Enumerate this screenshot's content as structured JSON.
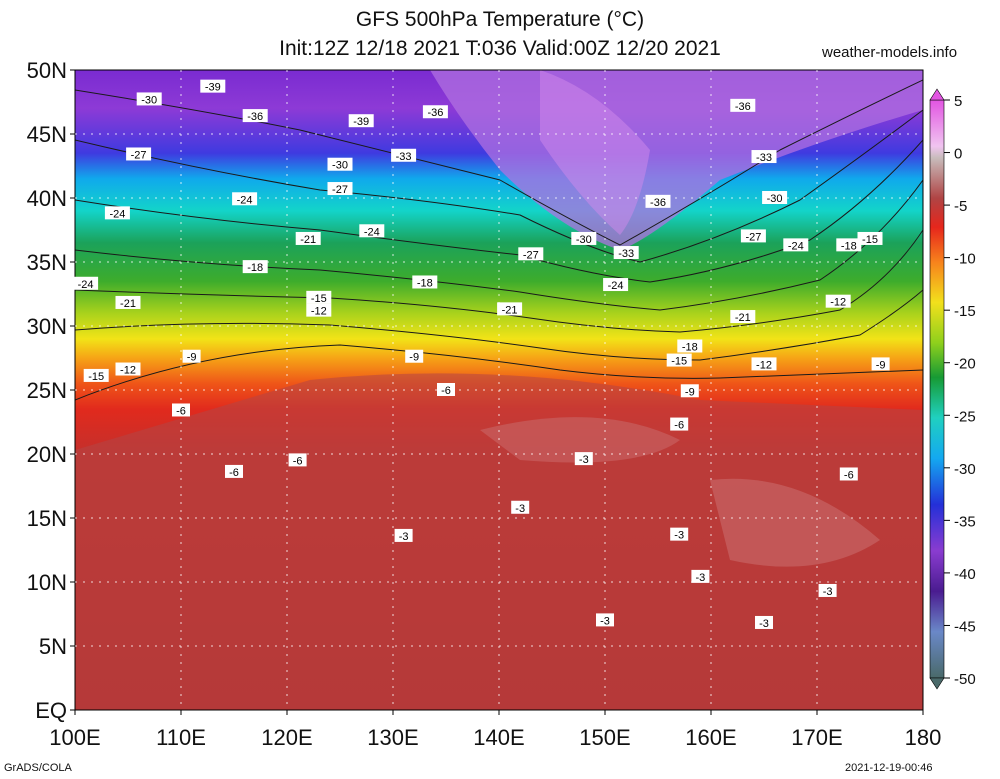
{
  "header": {
    "title": "GFS 500hPa Temperature (°C)",
    "subtitle": "Init:12Z 12/18 2021 T:036 Valid:00Z 12/20 2021",
    "site": "weather-models.info"
  },
  "footer": {
    "left": "GrADS/COLA",
    "right": "2021-12-19-00:46"
  },
  "map": {
    "lat_labels": [
      "50N",
      "45N",
      "40N",
      "35N",
      "30N",
      "25N",
      "20N",
      "15N",
      "10N",
      "5N",
      "EQ"
    ],
    "lon_labels": [
      "100E",
      "110E",
      "120E",
      "130E",
      "140E",
      "150E",
      "160E",
      "170E",
      "180"
    ],
    "lat_range": [
      0,
      50
    ],
    "lon_range": [
      100,
      180
    ],
    "contour_labels": [
      {
        "text": "-39",
        "lon": 113,
        "lat": 48.7
      },
      {
        "text": "-30",
        "lon": 107,
        "lat": 47.7
      },
      {
        "text": "-36",
        "lon": 117,
        "lat": 46.4
      },
      {
        "text": "-39",
        "lon": 127,
        "lat": 46.0
      },
      {
        "text": "-36",
        "lon": 134,
        "lat": 46.7
      },
      {
        "text": "-36",
        "lon": 163,
        "lat": 47.2
      },
      {
        "text": "-27",
        "lon": 106,
        "lat": 43.4
      },
      {
        "text": "-33",
        "lon": 131,
        "lat": 43.3
      },
      {
        "text": "-30",
        "lon": 125,
        "lat": 42.6
      },
      {
        "text": "-33",
        "lon": 165,
        "lat": 43.2
      },
      {
        "text": "-27",
        "lon": 125,
        "lat": 40.7
      },
      {
        "text": "-24",
        "lon": 116,
        "lat": 39.9
      },
      {
        "text": "-36",
        "lon": 155,
        "lat": 39.7
      },
      {
        "text": "-30",
        "lon": 166,
        "lat": 40.0
      },
      {
        "text": "-24",
        "lon": 104,
        "lat": 38.8
      },
      {
        "text": "-24",
        "lon": 128,
        "lat": 37.4
      },
      {
        "text": "-21",
        "lon": 122,
        "lat": 36.8
      },
      {
        "text": "-30",
        "lon": 148,
        "lat": 36.8
      },
      {
        "text": "-27",
        "lon": 143,
        "lat": 35.6
      },
      {
        "text": "-33",
        "lon": 152,
        "lat": 35.7
      },
      {
        "text": "-27",
        "lon": 164,
        "lat": 37.0
      },
      {
        "text": "-24",
        "lon": 168,
        "lat": 36.3
      },
      {
        "text": "-18",
        "lon": 173,
        "lat": 36.3
      },
      {
        "text": "-15",
        "lon": 175,
        "lat": 36.8
      },
      {
        "text": "-18",
        "lon": 117,
        "lat": 34.6
      },
      {
        "text": "-24",
        "lon": 101,
        "lat": 33.3
      },
      {
        "text": "-18",
        "lon": 133,
        "lat": 33.4
      },
      {
        "text": "-24",
        "lon": 151,
        "lat": 33.2
      },
      {
        "text": "-15",
        "lon": 123,
        "lat": 32.2
      },
      {
        "text": "-21",
        "lon": 105,
        "lat": 31.8
      },
      {
        "text": "-12",
        "lon": 123,
        "lat": 31.2
      },
      {
        "text": "-21",
        "lon": 141,
        "lat": 31.3
      },
      {
        "text": "-12",
        "lon": 172,
        "lat": 31.9
      },
      {
        "text": "-21",
        "lon": 163,
        "lat": 30.7
      },
      {
        "text": "-18",
        "lon": 158,
        "lat": 28.4
      },
      {
        "text": "-9",
        "lon": 111,
        "lat": 27.6
      },
      {
        "text": "-9",
        "lon": 132,
        "lat": 27.6
      },
      {
        "text": "-15",
        "lon": 157,
        "lat": 27.3
      },
      {
        "text": "-12",
        "lon": 165,
        "lat": 27.0
      },
      {
        "text": "-9",
        "lon": 176,
        "lat": 27.0
      },
      {
        "text": "-15",
        "lon": 102,
        "lat": 26.1
      },
      {
        "text": "-12",
        "lon": 105,
        "lat": 26.6
      },
      {
        "text": "-6",
        "lon": 135,
        "lat": 25.0
      },
      {
        "text": "-9",
        "lon": 158,
        "lat": 24.9
      },
      {
        "text": "-6",
        "lon": 110,
        "lat": 23.4
      },
      {
        "text": "-6",
        "lon": 157,
        "lat": 22.3
      },
      {
        "text": "-3",
        "lon": 148,
        "lat": 19.6
      },
      {
        "text": "-6",
        "lon": 121,
        "lat": 19.5
      },
      {
        "text": "-6",
        "lon": 115,
        "lat": 18.6
      },
      {
        "text": "-6",
        "lon": 173,
        "lat": 18.4
      },
      {
        "text": "-3",
        "lon": 142,
        "lat": 15.8
      },
      {
        "text": "-3",
        "lon": 131,
        "lat": 13.6
      },
      {
        "text": "-3",
        "lon": 157,
        "lat": 13.7
      },
      {
        "text": "-3",
        "lon": 159,
        "lat": 10.4
      },
      {
        "text": "-3",
        "lon": 171,
        "lat": 9.3
      },
      {
        "text": "-3",
        "lon": 150,
        "lat": 7.0
      },
      {
        "text": "-3",
        "lon": 165,
        "lat": 6.8
      }
    ]
  },
  "colorbar": {
    "ticks": [
      "5",
      "0",
      "-5",
      "-10",
      "-15",
      "-20",
      "-25",
      "-30",
      "-35",
      "-40",
      "-45",
      "-50"
    ],
    "range": [
      -50,
      5
    ]
  }
}
